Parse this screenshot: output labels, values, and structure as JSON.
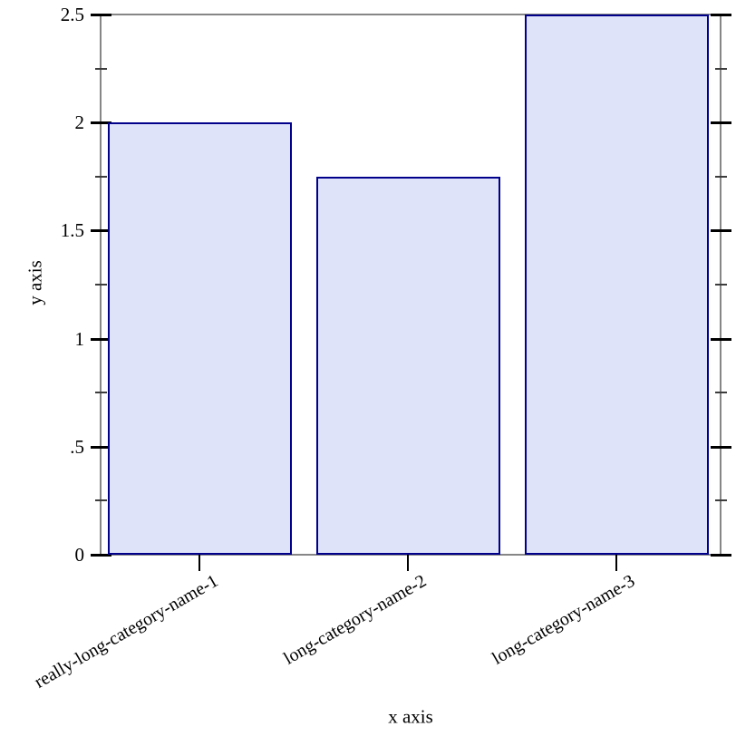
{
  "chart_data": {
    "type": "bar",
    "categories": [
      "really-long-category-name-1",
      "long-category-name-2",
      "long-category-name-3"
    ],
    "values": [
      2,
      1.75,
      2.5
    ],
    "title": "",
    "xlabel": "x axis",
    "ylabel": "y axis",
    "ylim": [
      0,
      2.5
    ],
    "y_major_ticks": [
      {
        "value": 0,
        "label": "0"
      },
      {
        "value": 0.5,
        "label": ".5"
      },
      {
        "value": 1,
        "label": "1"
      },
      {
        "value": 1.5,
        "label": "1.5"
      },
      {
        "value": 2,
        "label": "2"
      },
      {
        "value": 2.5,
        "label": "2.5"
      }
    ],
    "y_minor_ticks": [
      0.25,
      0.75,
      1.25,
      1.75,
      2.25
    ],
    "grid": false,
    "legend": "none",
    "frame": "closed-box-with-mirrored-right-ticks",
    "colors": {
      "bar_fill": "#dfe3fa",
      "bar_border": "#00008b",
      "axis_line": "#868686",
      "tick": "#000000",
      "text": "#000000",
      "background": "#ffffff"
    }
  }
}
